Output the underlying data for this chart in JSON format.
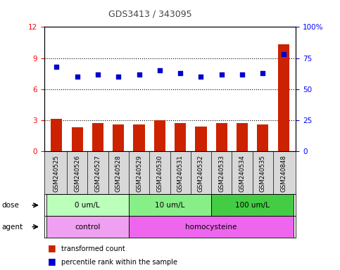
{
  "title": "GDS3413 / 343095",
  "samples": [
    "GSM240525",
    "GSM240526",
    "GSM240527",
    "GSM240528",
    "GSM240529",
    "GSM240530",
    "GSM240531",
    "GSM240532",
    "GSM240533",
    "GSM240534",
    "GSM240535",
    "GSM240848"
  ],
  "bar_values": [
    3.1,
    2.3,
    2.7,
    2.6,
    2.6,
    3.0,
    2.7,
    2.4,
    2.7,
    2.7,
    2.6,
    10.3
  ],
  "scatter_values": [
    68.0,
    60.0,
    62.0,
    60.0,
    62.0,
    65.0,
    63.0,
    60.0,
    62.0,
    62.0,
    63.0,
    78.0
  ],
  "bar_color": "#cc2200",
  "scatter_color": "#0000cc",
  "left_ylim": [
    0,
    12
  ],
  "left_yticks": [
    0,
    3,
    6,
    9,
    12
  ],
  "right_ylim": [
    0,
    100
  ],
  "right_yticks": [
    0,
    25,
    50,
    75,
    100
  ],
  "right_yticklabels": [
    "0",
    "25",
    "50",
    "75",
    "100%"
  ],
  "dose_groups": [
    {
      "label": "0 um/L",
      "start": 0,
      "end": 4,
      "color": "#bbffbb"
    },
    {
      "label": "10 um/L",
      "start": 4,
      "end": 8,
      "color": "#88ee88"
    },
    {
      "label": "100 um/L",
      "start": 8,
      "end": 12,
      "color": "#44cc44"
    }
  ],
  "agent_groups": [
    {
      "label": "control",
      "start": 0,
      "end": 4,
      "color": "#f0a0f0"
    },
    {
      "label": "homocysteine",
      "start": 4,
      "end": 12,
      "color": "#ee66ee"
    }
  ],
  "dose_label": "dose",
  "agent_label": "agent",
  "legend_bar": "transformed count",
  "legend_scatter": "percentile rank within the sample",
  "sample_bg": "#d8d8d8",
  "plot_bg": "#ffffff",
  "title_color": "#444444"
}
